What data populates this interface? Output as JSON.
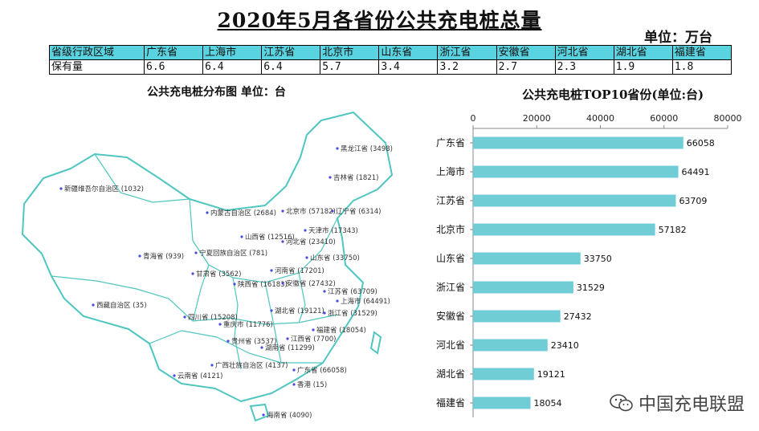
{
  "title": "2020年5月各省份公共充电桩总量",
  "unit_note": "单位：万台",
  "summary_table": {
    "row_header_region": "省级行政区域",
    "row_header_count": "保有量",
    "regions": [
      "广东省",
      "上海市",
      "江苏省",
      "北京市",
      "山东省",
      "浙江省",
      "安徽省",
      "河北省",
      "湖北省",
      "福建省"
    ],
    "values": [
      "6.6",
      "6.4",
      "6.4",
      "5.7",
      "3.4",
      "3.2",
      "2.7",
      "2.3",
      "1.9",
      "1.8"
    ]
  },
  "map": {
    "title": "公共充电桩分布图  单位：台",
    "labels": [
      "黑龙江省 (3498)",
      "吉林省 (1821)",
      "辽宁省 (6314)",
      "内蒙古自治区 (2684)",
      "北京市 (57182)",
      "天津市 (17343)",
      "新疆维吾尔自治区 (1032)",
      "山西省 (12516)",
      "河北省 (23410)",
      "宁夏回族自治区 (781)",
      "青海省 (939)",
      "山东省 (33750)",
      "甘肃省 (3562)",
      "河南省 (17201)",
      "陕西省 (16183)",
      "安徽省 (27432)",
      "江苏省 (63709)",
      "上海市 (64491)",
      "西藏自治区 (35)",
      "湖北省 (19121)",
      "浙江省 (31529)",
      "四川省 (15208)",
      "重庆市 (11776)",
      "福建省 (18054)",
      "贵州省 (3537)",
      "江西省 (7700)",
      "湖南省 (11299)",
      "广西壮族自治区 (4137)",
      "广东省 (66058)",
      "云南省 (4121)",
      "香港 (15)",
      "海南省 (4090)"
    ]
  },
  "chart_data": {
    "type": "bar",
    "orientation": "horizontal",
    "title": "公共充电桩TOP10省份(单位:台)",
    "categories": [
      "广东省",
      "上海市",
      "江苏省",
      "北京市",
      "山东省",
      "浙江省",
      "安徽省",
      "河北省",
      "湖北省",
      "福建省"
    ],
    "values": [
      66058,
      64491,
      63709,
      57182,
      33750,
      31529,
      27432,
      23410,
      19121,
      18054
    ],
    "xlim": [
      0,
      80000
    ],
    "ticks": [
      "0",
      "20000",
      "40000",
      "60000",
      "80000"
    ],
    "axis_position": "top",
    "grid": false,
    "bar_color": "#70cdd6"
  },
  "watermark": "中国充电联盟",
  "colors": {
    "table_header": "#5ad3e0",
    "map_outline": "#4fc6c0",
    "bar": "#70cdd6"
  }
}
